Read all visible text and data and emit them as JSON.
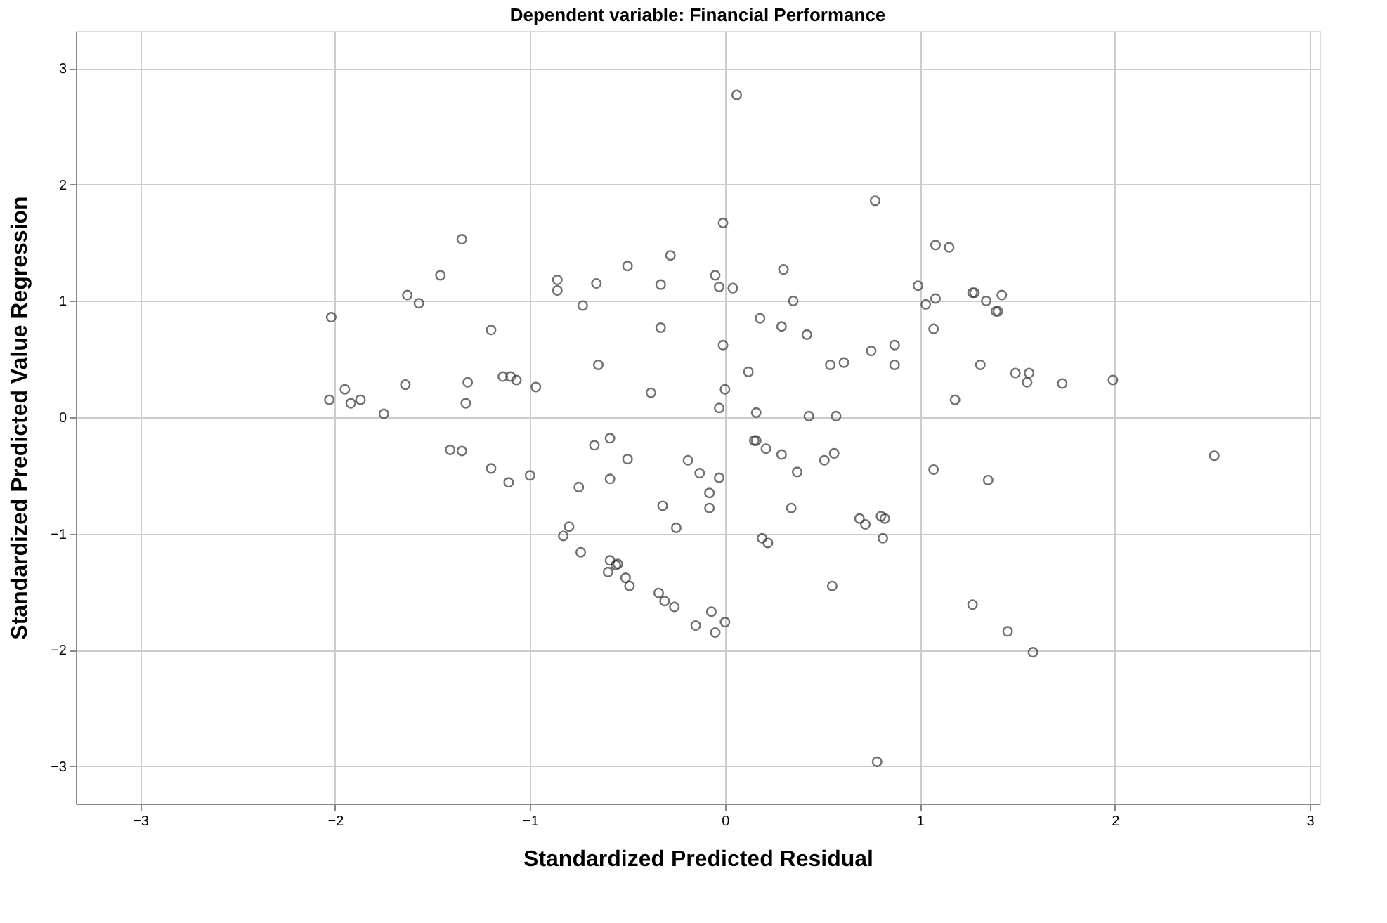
{
  "chart_data": {
    "type": "scatter",
    "title": "Dependent variable: Financial Performance",
    "xlabel": "Standardized Predicted Residual",
    "ylabel": "Standardized Predicted Value Regression",
    "xlim": [
      -3.33,
      3.05
    ],
    "ylim": [
      -3.32,
      3.32
    ],
    "xticks": [
      -3,
      -2,
      -1,
      0,
      1,
      2,
      3
    ],
    "yticks": [
      -3,
      -2,
      -1,
      0,
      1,
      2,
      3
    ],
    "grid": true,
    "marker": "circle",
    "series": [
      {
        "color": "#333333",
        "x": [
          0.06,
          0.77,
          -0.01,
          1.08,
          -0.28,
          -0.5,
          0.3,
          -0.86,
          -0.86,
          -0.66,
          -0.33,
          -0.05,
          -0.03,
          0.04,
          0.99,
          1.08,
          1.03,
          1.07,
          0.35,
          -0.73,
          0.18,
          0.29,
          -0.33,
          0.42,
          -0.01,
          0.87,
          0.75,
          0.87,
          0.54,
          0.61,
          -0.65,
          0.12,
          -0.97,
          -0.38,
          0.0,
          -0.03,
          0.16,
          0.43,
          0.57,
          -1.14,
          -1.1,
          -1.07,
          -1.35,
          -1.46,
          -1.63,
          -1.57,
          -2.02,
          -1.2,
          -1.32,
          -1.33,
          -1.64,
          -1.95,
          -2.03,
          -1.92,
          -1.87,
          -1.75,
          1.15,
          1.27,
          1.28,
          1.34,
          1.42,
          1.39,
          1.4,
          1.31,
          1.49,
          1.56,
          1.55,
          1.73,
          1.99,
          1.18,
          0.15,
          0.16,
          0.21,
          0.29,
          0.37,
          0.51,
          0.56,
          1.07,
          0.34,
          0.69,
          0.72,
          0.8,
          0.82,
          0.81,
          0.19,
          0.22,
          0.55,
          0.78,
          -0.19,
          -0.13,
          -0.03,
          -0.08,
          -0.08,
          -0.32,
          -0.25,
          -0.59,
          -0.67,
          -0.5,
          -0.59,
          -0.75,
          -1.0,
          -1.11,
          -0.8,
          -0.83,
          -0.74,
          -0.59,
          -0.56,
          -0.55,
          -0.6,
          -0.51,
          -0.49,
          -0.34,
          -0.31,
          -0.26,
          -0.07,
          0.0,
          -0.15,
          -0.05,
          -1.41,
          -1.35,
          -1.2,
          2.51,
          1.35,
          1.27,
          1.45,
          1.58
        ],
        "values": [
          2.77,
          1.86,
          1.67,
          1.48,
          1.39,
          1.3,
          1.27,
          1.18,
          1.09,
          1.15,
          1.14,
          1.22,
          1.12,
          1.11,
          1.13,
          1.02,
          0.97,
          0.76,
          1.0,
          0.96,
          0.85,
          0.78,
          0.77,
          0.71,
          0.62,
          0.62,
          0.57,
          0.45,
          0.45,
          0.47,
          0.45,
          0.39,
          0.26,
          0.21,
          0.24,
          0.08,
          0.04,
          0.01,
          0.01,
          0.35,
          0.35,
          0.32,
          1.53,
          1.22,
          1.05,
          0.98,
          0.86,
          0.75,
          0.3,
          0.12,
          0.28,
          0.24,
          0.15,
          0.12,
          0.15,
          0.03,
          1.46,
          1.07,
          1.07,
          1.0,
          1.05,
          0.91,
          0.91,
          0.45,
          0.38,
          0.38,
          0.3,
          0.29,
          0.32,
          0.15,
          -0.2,
          -0.2,
          -0.27,
          -0.32,
          -0.47,
          -0.37,
          -0.31,
          -0.45,
          -0.78,
          -0.87,
          -0.92,
          -0.85,
          -0.87,
          -1.04,
          -1.04,
          -1.08,
          -1.45,
          -2.96,
          -0.37,
          -0.48,
          -0.52,
          -0.65,
          -0.78,
          -0.76,
          -0.95,
          -0.18,
          -0.24,
          -0.36,
          -0.53,
          -0.6,
          -0.5,
          -0.56,
          -0.94,
          -1.02,
          -1.16,
          -1.23,
          -1.27,
          -1.26,
          -1.33,
          -1.38,
          -1.45,
          -1.51,
          -1.58,
          -1.63,
          -1.67,
          -1.76,
          -1.79,
          -1.85,
          -0.28,
          -0.29,
          -0.44,
          -0.33,
          -0.54,
          -1.61,
          -1.84,
          -2.02
        ]
      }
    ]
  }
}
